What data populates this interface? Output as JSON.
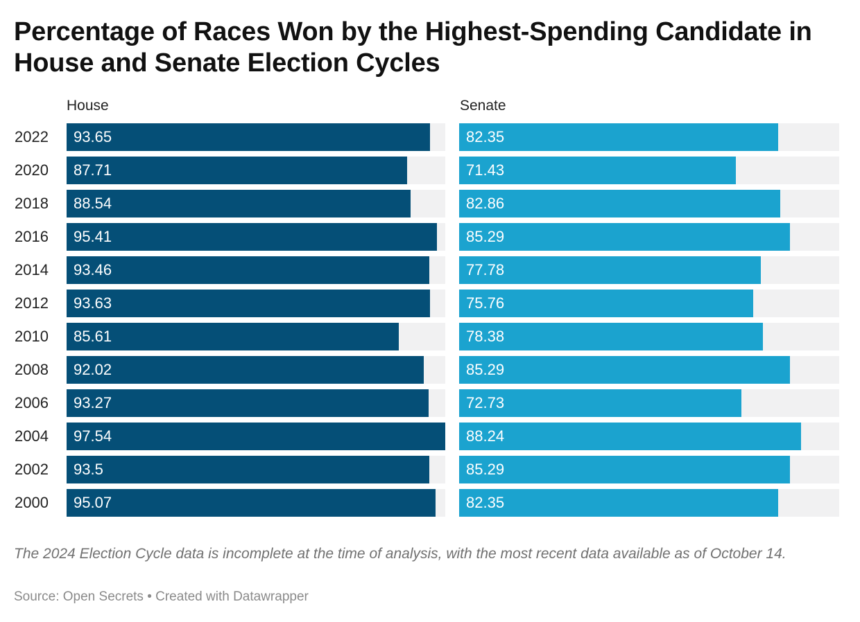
{
  "chart_data": {
    "type": "bar",
    "orientation": "horizontal",
    "title": "Percentage of Races Won by the Highest-Spending Candidate in House and Senate Election Cycles",
    "categories": [
      "2022",
      "2020",
      "2018",
      "2016",
      "2014",
      "2012",
      "2010",
      "2008",
      "2006",
      "2004",
      "2002",
      "2000"
    ],
    "series": [
      {
        "name": "House",
        "color": "#054f77",
        "values": [
          93.65,
          87.71,
          88.54,
          95.41,
          93.46,
          93.63,
          85.61,
          92.02,
          93.27,
          97.54,
          93.5,
          95.07
        ],
        "labels": [
          "93.65",
          "87.71",
          "88.54",
          "95.41",
          "93.46",
          "93.63",
          "85.61",
          "92.02",
          "93.27",
          "97.54",
          "93.5",
          "95.07"
        ],
        "xlim": [
          0,
          97.54
        ]
      },
      {
        "name": "Senate",
        "color": "#1ba3cf",
        "values": [
          82.35,
          71.43,
          82.86,
          85.29,
          77.78,
          75.76,
          78.38,
          85.29,
          72.73,
          88.24,
          85.29,
          82.35
        ],
        "labels": [
          "82.35",
          "71.43",
          "82.86",
          "85.29",
          "77.78",
          "75.76",
          "78.38",
          "85.29",
          "72.73",
          "88.24",
          "85.29",
          "82.35"
        ],
        "xlim": [
          0,
          98
        ]
      }
    ],
    "track_color": "#f1f1f2",
    "note": "The 2024 Election Cycle data is incomplete at the time of analysis, with the most recent data available as of October 14.",
    "source": "Source: Open Secrets • Created with Datawrapper"
  }
}
